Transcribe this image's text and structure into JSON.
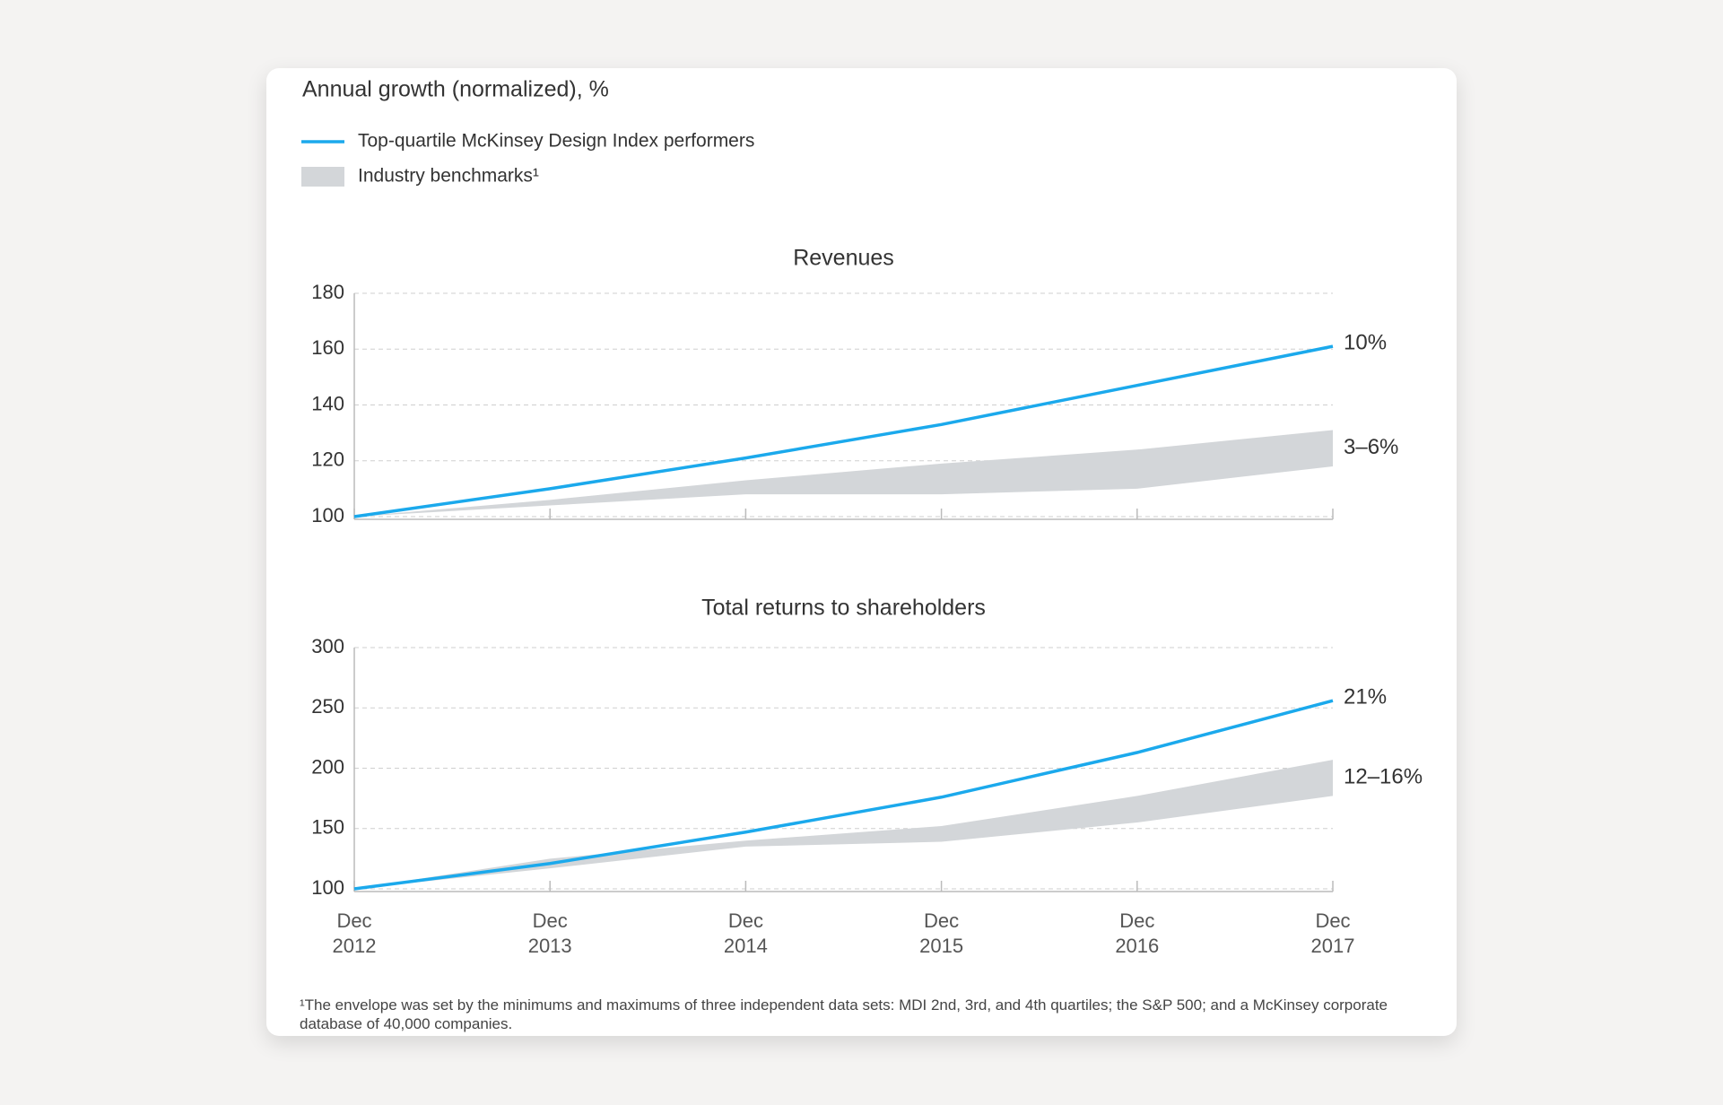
{
  "title": "Annual growth (normalized), %",
  "footnote": "¹The envelope was set by the minimums and maximums of three independent data sets: MDI 2nd, 3rd, and 4th quartiles; the S&P 500; and a McKinsey corporate database of 40,000 companies.",
  "chart_data": [
    {
      "type": "line",
      "title": "Revenues",
      "categories": [
        null,
        null,
        null,
        null,
        null,
        null
      ],
      "ylim": [
        100,
        180
      ],
      "yticks": [
        100,
        120,
        140,
        160,
        180
      ],
      "grid": true,
      "series": [
        {
          "name": "Top-quartile McKinsey Design Index performers",
          "color": "#1ba9ec",
          "values": [
            100,
            110,
            121,
            133,
            147,
            161
          ],
          "end_label": "10%"
        },
        {
          "name": "Industry benchmarks¹",
          "type": "band",
          "color": "#d3d6d9",
          "lower": [
            100,
            104,
            108,
            108,
            110,
            118
          ],
          "upper": [
            100,
            106,
            113,
            119,
            124,
            131
          ],
          "end_label": "3–6%"
        }
      ]
    },
    {
      "type": "line",
      "title": "Total returns to shareholders",
      "categories": [
        "Dec 2012",
        "Dec 2013",
        "Dec 2014",
        "Dec 2015",
        "Dec 2016",
        "Dec 2017"
      ],
      "ylim": [
        100,
        300
      ],
      "yticks": [
        100,
        150,
        200,
        250,
        300
      ],
      "grid": true,
      "series": [
        {
          "color": "#1ba9ec",
          "values": [
            100,
            121,
            147,
            176,
            213,
            256
          ],
          "end_label": "21%"
        },
        {
          "type": "band",
          "color": "#d3d6d9",
          "lower": [
            100,
            117,
            135,
            139,
            155,
            177
          ],
          "upper": [
            100,
            125,
            140,
            152,
            177,
            207
          ],
          "end_label": "12–16%"
        }
      ]
    }
  ]
}
